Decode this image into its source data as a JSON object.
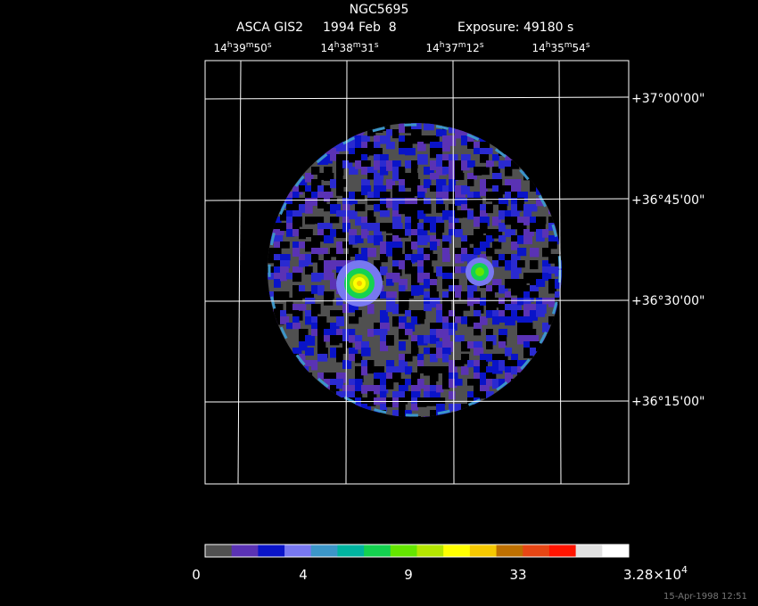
{
  "title": "NGC5695",
  "subtitle": {
    "instrument": "ASCA GIS2",
    "date": "1994 Feb  8",
    "exposure": "Exposure: 49180 s"
  },
  "ra_labels": [
    [
      "14",
      "h",
      "39",
      "m",
      "50",
      "s"
    ],
    [
      "14",
      "h",
      "38",
      "m",
      "31",
      "s"
    ],
    [
      "14",
      "h",
      "37",
      "m",
      "12",
      "s"
    ],
    [
      "14",
      "h",
      "35",
      "m",
      "54",
      "s"
    ]
  ],
  "dec_labels": [
    "+37°00'00\"",
    "+36°45'00\"",
    "+36°30'00\"",
    "+36°15'00\""
  ],
  "colorbar": {
    "colors": [
      "#505050",
      "#5a32b4",
      "#0a14c8",
      "#7878f0",
      "#3c96c8",
      "#00b4a0",
      "#14d250",
      "#64e600",
      "#b4e600",
      "#ffff00",
      "#f5c800",
      "#be7000",
      "#e64614",
      "#ff1400",
      "#e1e1e1",
      "#ffffff"
    ],
    "labels": [
      [
        "0"
      ],
      [
        "4"
      ],
      [
        "9"
      ],
      [
        "33"
      ],
      [
        "3.28×10",
        "4"
      ]
    ]
  },
  "timestamp": "15-Apr-1998 12:51"
}
